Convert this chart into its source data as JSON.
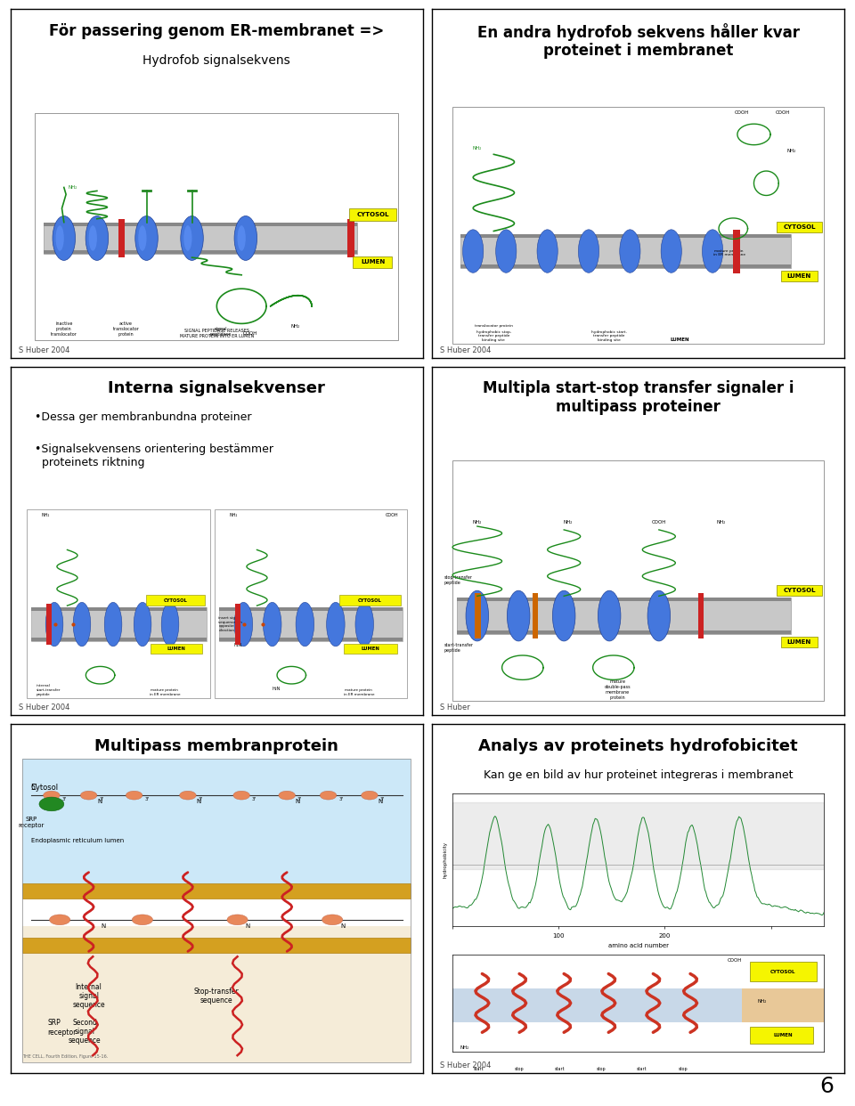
{
  "background_color": "#ffffff",
  "page_bg": "#ffffff",
  "border_color": "#000000",
  "grid_rows": 3,
  "grid_cols": 2,
  "page_number": "6",
  "panels": [
    {
      "row": 0,
      "col": 0,
      "title": "För passering genom ER-membranet =>",
      "subtitle": "Hydrofob signalsekvens",
      "title_fontsize": 12,
      "subtitle_fontsize": 10,
      "footer": "S Huber 2004",
      "bullet_points": []
    },
    {
      "row": 0,
      "col": 1,
      "title": "En andra hydrofob sekvens håller kvar\nproteinet i membranet",
      "subtitle": "",
      "title_fontsize": 12,
      "subtitle_fontsize": 10,
      "footer": "S Huber 2004",
      "bullet_points": []
    },
    {
      "row": 1,
      "col": 0,
      "title": "Interna signalsekvenser",
      "subtitle": "",
      "title_fontsize": 13,
      "subtitle_fontsize": 10,
      "footer": "S Huber 2004",
      "bullet_points": [
        "•Dessa ger membranbundna proteiner",
        "•Signalsekvensens orientering bestämmer\n  proteinets riktning"
      ]
    },
    {
      "row": 1,
      "col": 1,
      "title": "Multipla start-stop transfer signaler i\nmultipass proteiner",
      "subtitle": "",
      "title_fontsize": 12,
      "subtitle_fontsize": 10,
      "footer": "S Huber",
      "bullet_points": []
    },
    {
      "row": 2,
      "col": 0,
      "title": "Multipass membranprotein",
      "subtitle": "",
      "title_fontsize": 13,
      "subtitle_fontsize": 10,
      "footer": "",
      "bullet_points": []
    },
    {
      "row": 2,
      "col": 1,
      "title": "Analys av proteinets hydrofobicitet",
      "subtitle": "Kan ge en bild av hur proteinet integreras i membranet",
      "title_fontsize": 13,
      "subtitle_fontsize": 9,
      "footer": "S Huber 2004",
      "bullet_points": []
    }
  ]
}
